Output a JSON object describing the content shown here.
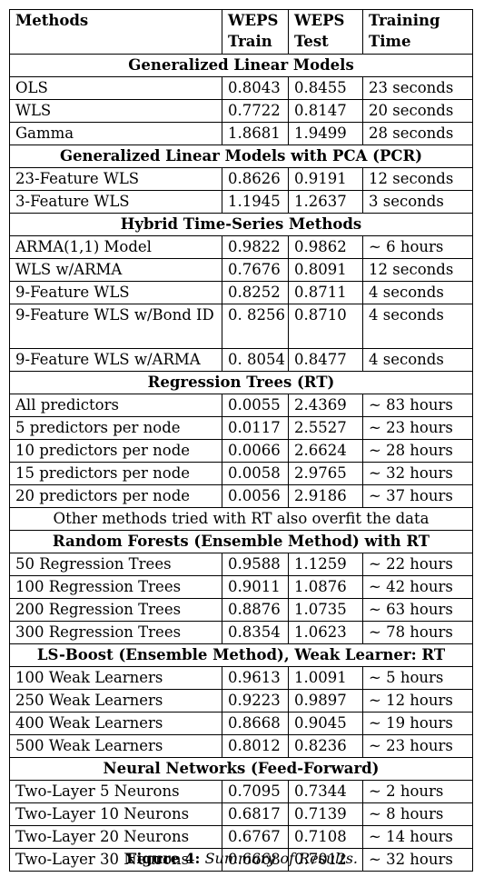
{
  "headers": [
    "Methods",
    "WEPS Train",
    "WEPS Test",
    "Training Time"
  ],
  "sections": [
    {
      "title": "Generalized Linear Models",
      "rows": [
        [
          "OLS",
          "0.8043",
          "0.8455",
          "23 seconds"
        ],
        [
          "WLS",
          "0.7722",
          "0.8147",
          "20 seconds"
        ],
        [
          "Gamma",
          "1.8681",
          "1.9499",
          "28 seconds"
        ]
      ]
    },
    {
      "title": "Generalized Linear Models with PCA (PCR)",
      "rows": [
        [
          "23-Feature WLS",
          "0.8626",
          "0.9191",
          "12 seconds"
        ],
        [
          "3-Feature WLS",
          "1.1945",
          "1.2637",
          "3 seconds"
        ]
      ]
    },
    {
      "title": "Hybrid Time-Series Methods",
      "rows": [
        [
          "ARMA(1,1) Model",
          "0.9822",
          "0.9862",
          "~ 6 hours"
        ],
        [
          "WLS w/ARMA",
          "0.7676",
          "0.8091",
          "12 seconds"
        ],
        [
          "9-Feature WLS",
          "0.8252",
          "0.8711",
          "4 seconds"
        ],
        [
          "9-Feature WLS w/Bond ID",
          "0. 8256",
          "0.8710",
          "4 seconds"
        ],
        [
          "9-Feature WLS w/ARMA",
          "0. 8054",
          "0.8477",
          "4 seconds"
        ]
      ]
    },
    {
      "title": "Regression Trees (RT)",
      "rows": [
        [
          "All predictors",
          "0.0055",
          "2.4369",
          "~ 83 hours"
        ],
        [
          "5 predictors per node",
          "0.0117",
          "2.5527",
          "~ 23 hours"
        ],
        [
          "10 predictors per node",
          "0.0066",
          "2.6624",
          "~ 28 hours"
        ],
        [
          "15 predictors per node",
          "0.0058",
          "2.9765",
          "~ 32 hours"
        ],
        [
          "20 predictors per node",
          "0.0056",
          "2.9186",
          "~ 37 hours"
        ]
      ],
      "note": "Other methods tried with RT also overfit the data"
    },
    {
      "title": "Random Forests (Ensemble Method) with RT",
      "rows": [
        [
          "50 Regression Trees",
          "0.9588",
          "1.1259",
          "~ 22 hours"
        ],
        [
          "100 Regression Trees",
          "0.9011",
          "1.0876",
          "~ 42 hours"
        ],
        [
          "200 Regression Trees",
          "0.8876",
          "1.0735",
          "~ 63 hours"
        ],
        [
          "300 Regression Trees",
          "0.8354",
          "1.0623",
          "~ 78 hours"
        ]
      ]
    },
    {
      "title": "LS-Boost (Ensemble Method), Weak Learner: RT",
      "rows": [
        [
          "100 Weak Learners",
          "0.9613",
          "1.0091",
          "~ 5 hours"
        ],
        [
          "250 Weak Learners",
          "0.9223",
          "0.9897",
          "~ 12 hours"
        ],
        [
          "400 Weak Learners",
          "0.8668",
          "0.9045",
          "~ 19 hours"
        ],
        [
          "500 Weak Learners",
          "0.8012",
          "0.8236",
          "~ 23 hours"
        ]
      ]
    },
    {
      "title": "Neural Networks (Feed-Forward)",
      "rows": [
        [
          "Two-Layer 5 Neurons",
          "0.7095",
          "0.7344",
          "~ 2 hours"
        ],
        [
          "Two-Layer 10 Neurons",
          "0.6817",
          "0.7139",
          "~ 8 hours"
        ],
        [
          "Two-Layer 20 Neurons",
          "0.6767",
          "0.7108",
          "~ 14 hours"
        ],
        [
          "Two-Layer 30 Neurons",
          "0.6668",
          "0.7012",
          "~ 32 hours"
        ]
      ]
    }
  ],
  "caption": {
    "label": "Figure 4:",
    "text": "Summary of Results."
  }
}
